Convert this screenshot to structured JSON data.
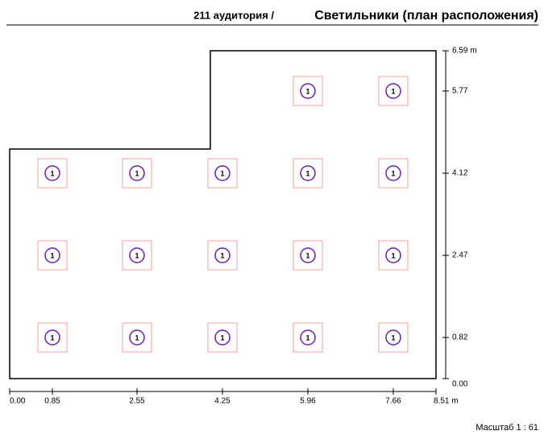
{
  "header": {
    "room": "211 аудитория /",
    "title": "Светильники (план расположения)"
  },
  "x_axis": {
    "ticks": [
      "0.00",
      "0.85",
      "2.55",
      "4.25",
      "5.96",
      "7.66",
      "8.51 m"
    ]
  },
  "y_axis": {
    "ticks": [
      "0.00",
      "0.82",
      "2.47",
      "4.12",
      "5.77",
      "6.59 m"
    ]
  },
  "luminaires": [
    {
      "label": "1"
    },
    {
      "label": "1"
    },
    {
      "label": "1"
    },
    {
      "label": "1"
    },
    {
      "label": "1"
    },
    {
      "label": "1"
    },
    {
      "label": "1"
    },
    {
      "label": "1"
    },
    {
      "label": "1"
    },
    {
      "label": "1"
    },
    {
      "label": "1"
    },
    {
      "label": "1"
    },
    {
      "label": "1"
    },
    {
      "label": "1"
    },
    {
      "label": "1"
    },
    {
      "label": "1"
    },
    {
      "label": "1"
    }
  ],
  "footer": {
    "scale": "Масштаб 1 : 61"
  }
}
